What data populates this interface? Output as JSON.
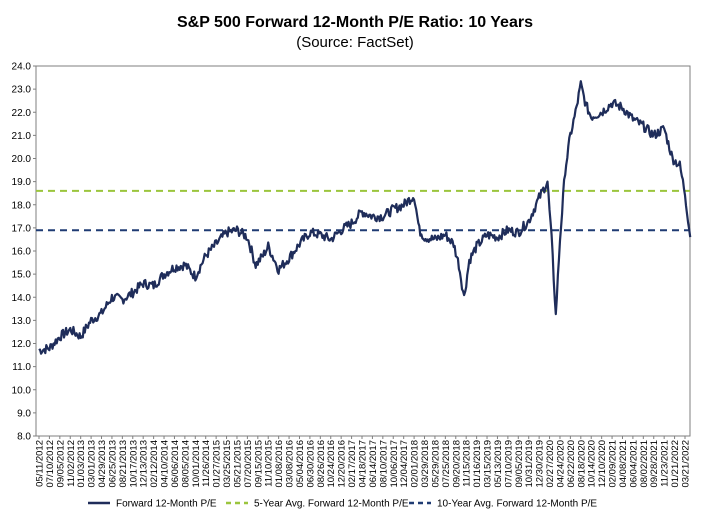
{
  "chart_data": {
    "type": "line",
    "title": "S&P 500 Forward 12-Month P/E Ratio: 10 Years",
    "subtitle": "(Source: FactSet)",
    "ylim": [
      8.0,
      24.0
    ],
    "yticks": [
      "8.0",
      "9.0",
      "10.0",
      "11.0",
      "12.0",
      "13.0",
      "14.0",
      "15.0",
      "16.0",
      "17.0",
      "18.0",
      "19.0",
      "20.0",
      "21.0",
      "22.0",
      "23.0",
      "24.0"
    ],
    "xticks": [
      "05/11/2012",
      "07/10/2012",
      "09/05/2012",
      "11/02/2012",
      "01/03/2013",
      "03/01/2013",
      "04/29/2013",
      "06/25/2013",
      "08/21/2013",
      "10/17/2013",
      "12/13/2013",
      "02/12/2014",
      "04/10/2014",
      "06/06/2014",
      "08/05/2014",
      "10/01/2014",
      "11/26/2014",
      "01/27/2015",
      "03/25/2015",
      "05/21/2015",
      "07/20/2015",
      "09/15/2015",
      "11/10/2015",
      "01/08/2016",
      "03/08/2016",
      "05/04/2016",
      "06/30/2016",
      "08/26/2016",
      "10/24/2016",
      "12/20/2016",
      "02/17/2017",
      "04/18/2017",
      "06/14/2017",
      "08/10/2017",
      "10/06/2017",
      "12/04/2017",
      "02/01/2018",
      "03/29/2018",
      "05/29/2018",
      "07/25/2018",
      "09/20/2018",
      "11/15/2018",
      "01/16/2019",
      "03/15/2019",
      "05/13/2019",
      "07/10/2019",
      "09/05/2019",
      "10/31/2019",
      "12/30/2019",
      "02/27/2020",
      "04/24/2020",
      "06/22/2020",
      "08/18/2020",
      "10/14/2020",
      "12/10/2020",
      "02/09/2021",
      "04/08/2021",
      "06/04/2021",
      "08/02/2021",
      "09/28/2021",
      "11/23/2021",
      "01/21/2022",
      "03/21/2022"
    ],
    "series": [
      {
        "name": "Forward 12-Month P/E",
        "color": "#1f2d5a",
        "keypoints": [
          [
            0,
            11.7
          ],
          [
            1,
            11.8
          ],
          [
            2,
            12.3
          ],
          [
            3,
            12.6
          ],
          [
            4,
            12.3
          ],
          [
            5,
            13.0
          ],
          [
            6,
            13.3
          ],
          [
            7,
            14.0
          ],
          [
            8,
            13.9
          ],
          [
            9,
            14.2
          ],
          [
            10,
            14.6
          ],
          [
            11,
            14.5
          ],
          [
            12,
            15.0
          ],
          [
            13,
            15.3
          ],
          [
            14,
            15.4
          ],
          [
            15,
            14.9
          ],
          [
            16,
            15.8
          ],
          [
            17,
            16.3
          ],
          [
            18,
            16.8
          ],
          [
            19,
            16.9
          ],
          [
            20,
            16.6
          ],
          [
            20.8,
            15.4
          ],
          [
            21.5,
            15.8
          ],
          [
            22,
            16.2
          ],
          [
            23,
            15.2
          ],
          [
            24,
            15.7
          ],
          [
            25,
            16.3
          ],
          [
            26,
            16.8
          ],
          [
            27,
            16.7
          ],
          [
            28,
            16.5
          ],
          [
            29,
            16.9
          ],
          [
            30,
            17.2
          ],
          [
            31,
            17.7
          ],
          [
            32,
            17.5
          ],
          [
            33,
            17.5
          ],
          [
            34,
            17.8
          ],
          [
            35,
            18.0
          ],
          [
            36,
            18.4
          ],
          [
            36.5,
            16.9
          ],
          [
            37,
            16.6
          ],
          [
            38,
            16.5
          ],
          [
            39,
            16.7
          ],
          [
            39.8,
            16.3
          ],
          [
            40.3,
            15.4
          ],
          [
            40.8,
            14.0
          ],
          [
            41.3,
            15.6
          ],
          [
            42,
            16.2
          ],
          [
            43,
            16.7
          ],
          [
            44,
            16.6
          ],
          [
            45,
            16.9
          ],
          [
            46,
            16.8
          ],
          [
            47,
            17.3
          ],
          [
            48,
            18.3
          ],
          [
            48.8,
            19.0
          ],
          [
            49.2,
            16.5
          ],
          [
            49.6,
            13.2
          ],
          [
            50,
            16.5
          ],
          [
            50.5,
            19.5
          ],
          [
            51,
            21.0
          ],
          [
            51.5,
            22.0
          ],
          [
            52,
            23.2
          ],
          [
            52.5,
            22.3
          ],
          [
            53,
            21.8
          ],
          [
            54,
            22.0
          ],
          [
            55,
            22.4
          ],
          [
            56,
            22.2
          ],
          [
            57,
            21.7
          ],
          [
            58,
            21.4
          ],
          [
            59,
            21.0
          ],
          [
            60,
            21.3
          ],
          [
            60.8,
            20.0
          ],
          [
            61.5,
            19.7
          ],
          [
            62,
            18.5
          ],
          [
            62.5,
            16.6
          ]
        ]
      }
    ],
    "reference_lines": [
      {
        "name": "5-Year Avg. Forward 12-Month P/E",
        "value": 18.6,
        "color": "#9bc53d",
        "style": "dashed"
      },
      {
        "name": "10-Year Avg. Forward 12-Month P/E",
        "value": 16.9,
        "color": "#1f3b73",
        "style": "dashed"
      }
    ],
    "legend": [
      {
        "label": "Forward 12-Month P/E",
        "color": "#1f2d5a",
        "style": "solid"
      },
      {
        "label": "5-Year Avg. Forward 12-Month P/E",
        "color": "#9bc53d",
        "style": "dashed"
      },
      {
        "label": "10-Year Avg. Forward 12-Month P/E",
        "color": "#1f3b73",
        "style": "dashed"
      }
    ],
    "legend_position": "bottom",
    "grid": false
  }
}
